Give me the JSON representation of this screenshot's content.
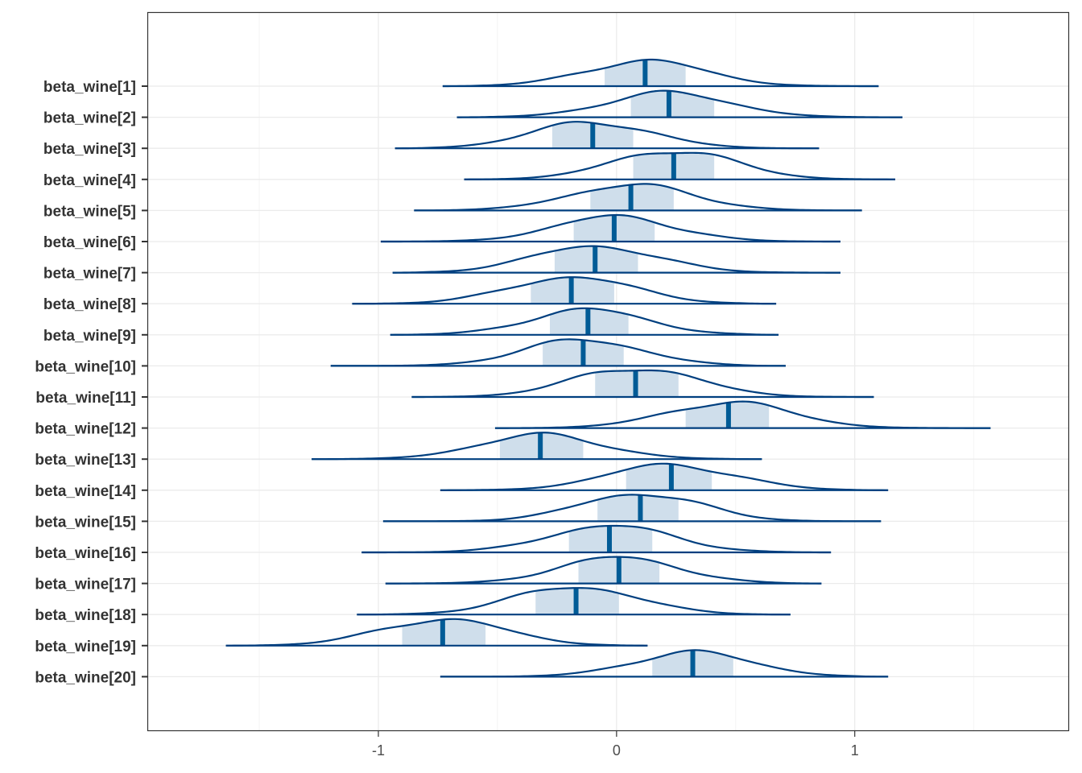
{
  "chart_data": {
    "type": "ridgeline",
    "title": "",
    "xlabel": "",
    "ylabel": "",
    "xlim": [
      -1.97,
      1.9
    ],
    "x_ticks": [
      -1,
      0,
      1
    ],
    "x_tick_labels": [
      "-1",
      "0",
      "1"
    ],
    "grid": true,
    "colors": {
      "density_line": "#003f7f",
      "interval_fill": "#cfdeeb",
      "median_line": "#005b96",
      "grid_major": "#ebebeb",
      "grid_minor": "#f2f2f2",
      "panel_border": "#333333"
    },
    "categories": [
      "beta_wine[1]",
      "beta_wine[2]",
      "beta_wine[3]",
      "beta_wine[4]",
      "beta_wine[5]",
      "beta_wine[6]",
      "beta_wine[7]",
      "beta_wine[8]",
      "beta_wine[9]",
      "beta_wine[10]",
      "beta_wine[11]",
      "beta_wine[12]",
      "beta_wine[13]",
      "beta_wine[14]",
      "beta_wine[15]",
      "beta_wine[16]",
      "beta_wine[17]",
      "beta_wine[18]",
      "beta_wine[19]",
      "beta_wine[20]"
    ],
    "series": [
      {
        "median": 0.12,
        "interval": [
          -0.05,
          0.29
        ],
        "range": [
          -0.73,
          1.1
        ]
      },
      {
        "median": 0.22,
        "interval": [
          0.06,
          0.41
        ],
        "range": [
          -0.67,
          1.2
        ]
      },
      {
        "median": -0.1,
        "interval": [
          -0.27,
          0.07
        ],
        "range": [
          -0.93,
          0.85
        ]
      },
      {
        "median": 0.24,
        "interval": [
          0.07,
          0.41
        ],
        "range": [
          -0.64,
          1.17
        ]
      },
      {
        "median": 0.06,
        "interval": [
          -0.11,
          0.24
        ],
        "range": [
          -0.85,
          1.03
        ]
      },
      {
        "median": -0.01,
        "interval": [
          -0.18,
          0.16
        ],
        "range": [
          -0.99,
          0.94
        ]
      },
      {
        "median": -0.09,
        "interval": [
          -0.26,
          0.09
        ],
        "range": [
          -0.94,
          0.94
        ]
      },
      {
        "median": -0.19,
        "interval": [
          -0.36,
          -0.01
        ],
        "range": [
          -1.11,
          0.67
        ]
      },
      {
        "median": -0.12,
        "interval": [
          -0.28,
          0.05
        ],
        "range": [
          -0.95,
          0.68
        ]
      },
      {
        "median": -0.14,
        "interval": [
          -0.31,
          0.03
        ],
        "range": [
          -1.2,
          0.71
        ]
      },
      {
        "median": 0.08,
        "interval": [
          -0.09,
          0.26
        ],
        "range": [
          -0.86,
          1.08
        ]
      },
      {
        "median": 0.47,
        "interval": [
          0.29,
          0.64
        ],
        "range": [
          -0.51,
          1.57
        ]
      },
      {
        "median": -0.32,
        "interval": [
          -0.49,
          -0.14
        ],
        "range": [
          -1.28,
          0.61
        ]
      },
      {
        "median": 0.23,
        "interval": [
          0.04,
          0.4
        ],
        "range": [
          -0.74,
          1.14
        ]
      },
      {
        "median": 0.1,
        "interval": [
          -0.08,
          0.26
        ],
        "range": [
          -0.98,
          1.11
        ]
      },
      {
        "median": -0.03,
        "interval": [
          -0.2,
          0.15
        ],
        "range": [
          -1.07,
          0.9
        ]
      },
      {
        "median": 0.01,
        "interval": [
          -0.16,
          0.18
        ],
        "range": [
          -0.97,
          0.86
        ]
      },
      {
        "median": -0.17,
        "interval": [
          -0.34,
          0.01
        ],
        "range": [
          -1.09,
          0.73
        ]
      },
      {
        "median": -0.73,
        "interval": [
          -0.9,
          -0.55
        ],
        "range": [
          -1.64,
          0.13
        ]
      },
      {
        "median": 0.32,
        "interval": [
          0.15,
          0.49
        ],
        "range": [
          -0.74,
          1.14
        ]
      }
    ]
  }
}
